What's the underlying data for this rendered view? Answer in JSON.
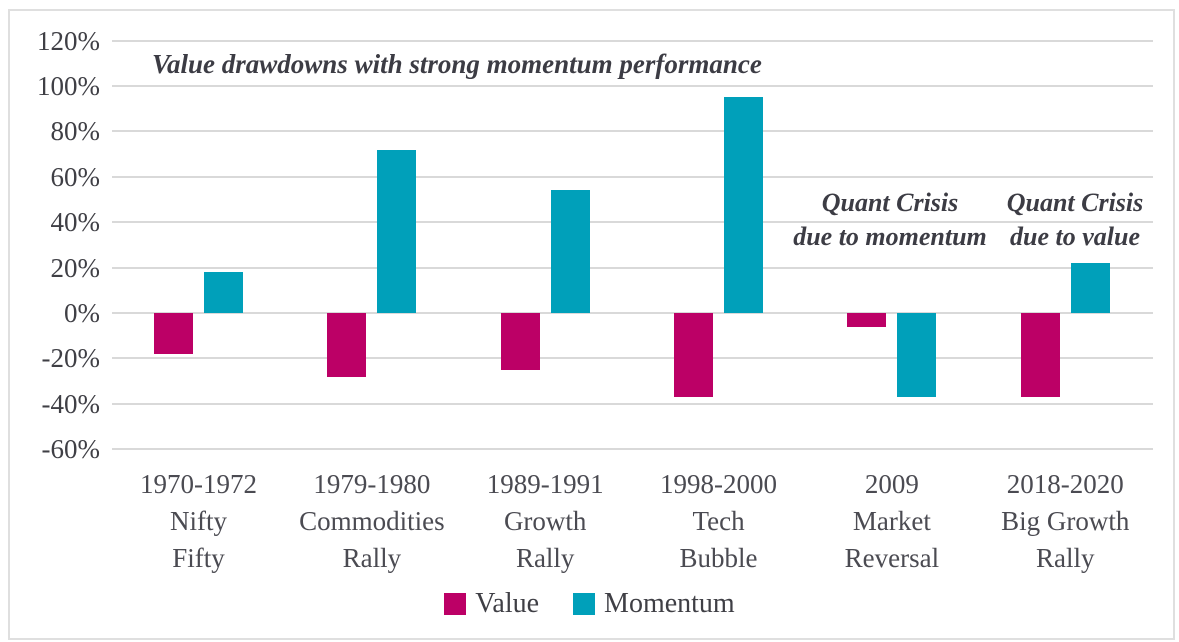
{
  "chart_data": {
    "type": "bar",
    "title": "",
    "xlabel": "",
    "ylabel": "",
    "ylim": [
      -60,
      120
    ],
    "ytick_step": 20,
    "yticks": [
      120,
      100,
      80,
      60,
      40,
      20,
      0,
      -20,
      -40,
      -60
    ],
    "ytick_labels": [
      "120%",
      "100%",
      "80%",
      "60%",
      "40%",
      "20%",
      "0%",
      "-20%",
      "-40%",
      "-60%"
    ],
    "grid": true,
    "categories": [
      {
        "lines": [
          "1970-1972",
          "Nifty",
          "Fifty"
        ]
      },
      {
        "lines": [
          "1979-1980",
          "Commodities",
          "Rally"
        ]
      },
      {
        "lines": [
          "1989-1991",
          "Growth",
          "Rally"
        ]
      },
      {
        "lines": [
          "1998-2000",
          "Tech",
          "Bubble"
        ]
      },
      {
        "lines": [
          "2009",
          "Market",
          "Reversal"
        ]
      },
      {
        "lines": [
          "2018-2020",
          "Big Growth",
          "Rally"
        ]
      }
    ],
    "series": [
      {
        "name": "Value",
        "color": "#bc0066",
        "values": [
          -18,
          -28,
          -25,
          -37,
          -6,
          -37
        ]
      },
      {
        "name": "Momentum",
        "color": "#00a0ba",
        "values": [
          18,
          72,
          54,
          95,
          -37,
          22
        ]
      }
    ],
    "legend": {
      "position": "bottom",
      "entries": [
        {
          "label": "Value",
          "color": "#bc0066"
        },
        {
          "label": "Momentum",
          "color": "#00a0ba"
        }
      ]
    },
    "annotations": [
      {
        "id": "value-drawdowns",
        "lines": [
          "Value drawdowns with strong momentum performance"
        ]
      },
      {
        "id": "quant-crisis-momentum",
        "lines": [
          "Quant Crisis",
          "due to momentum"
        ]
      },
      {
        "id": "quant-crisis-value",
        "lines": [
          "Quant Crisis",
          "due to value"
        ]
      }
    ],
    "colors": {
      "grid": "#d9d9d9",
      "frame_border": "#dfdfdf",
      "tick_text": "#3f3f45",
      "category_text": "#4b4b52",
      "annotation_text": "#3c3c44"
    }
  }
}
